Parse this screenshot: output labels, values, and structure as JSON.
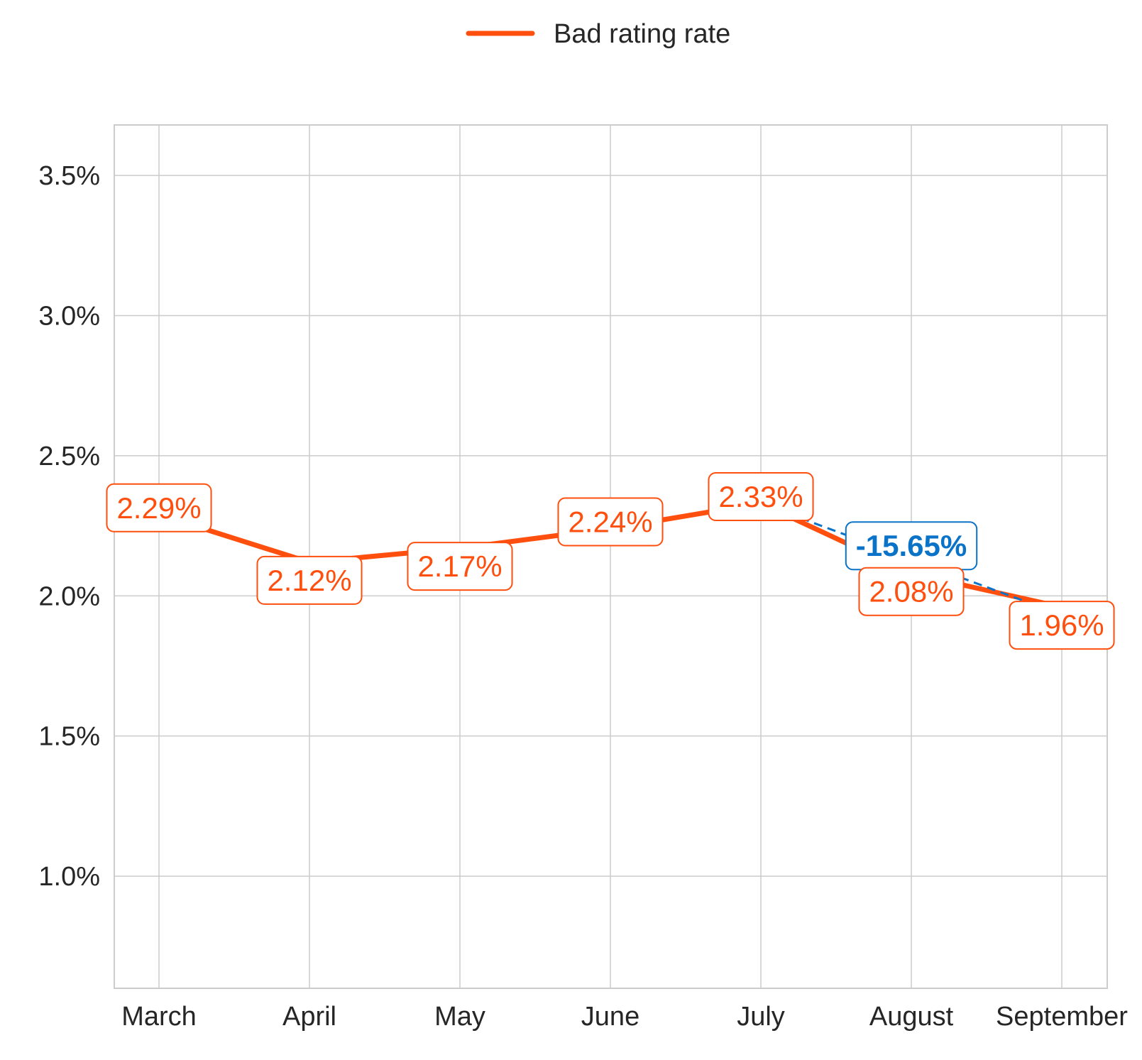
{
  "chart_data": {
    "type": "line",
    "categories": [
      "March",
      "April",
      "May",
      "June",
      "July",
      "August",
      "September"
    ],
    "series": [
      {
        "name": "Bad rating rate",
        "values": [
          2.29,
          2.12,
          2.17,
          2.24,
          2.33,
          2.08,
          1.96
        ],
        "labels": [
          "2.29%",
          "2.12%",
          "2.17%",
          "2.24%",
          "2.33%",
          "2.08%",
          "1.96%"
        ],
        "color": "#FF4F0F"
      }
    ],
    "ylim": [
      0.6,
      3.68
    ],
    "yticks": [
      1.0,
      1.5,
      2.0,
      2.5,
      3.0,
      3.5
    ],
    "ytick_labels": [
      "1.0%",
      "1.5%",
      "2.0%",
      "2.5%",
      "3.0%",
      "3.5%"
    ],
    "grid": true,
    "legend": {
      "position": "top-center",
      "entries": [
        "Bad rating rate"
      ]
    },
    "annotation": {
      "label": "-15.65%",
      "from_category": "July",
      "to_category": "September",
      "color": "#0A73C8",
      "line_style": "dashed"
    },
    "colors": {
      "grid": "#CCCCCC",
      "text": "#262626"
    }
  }
}
